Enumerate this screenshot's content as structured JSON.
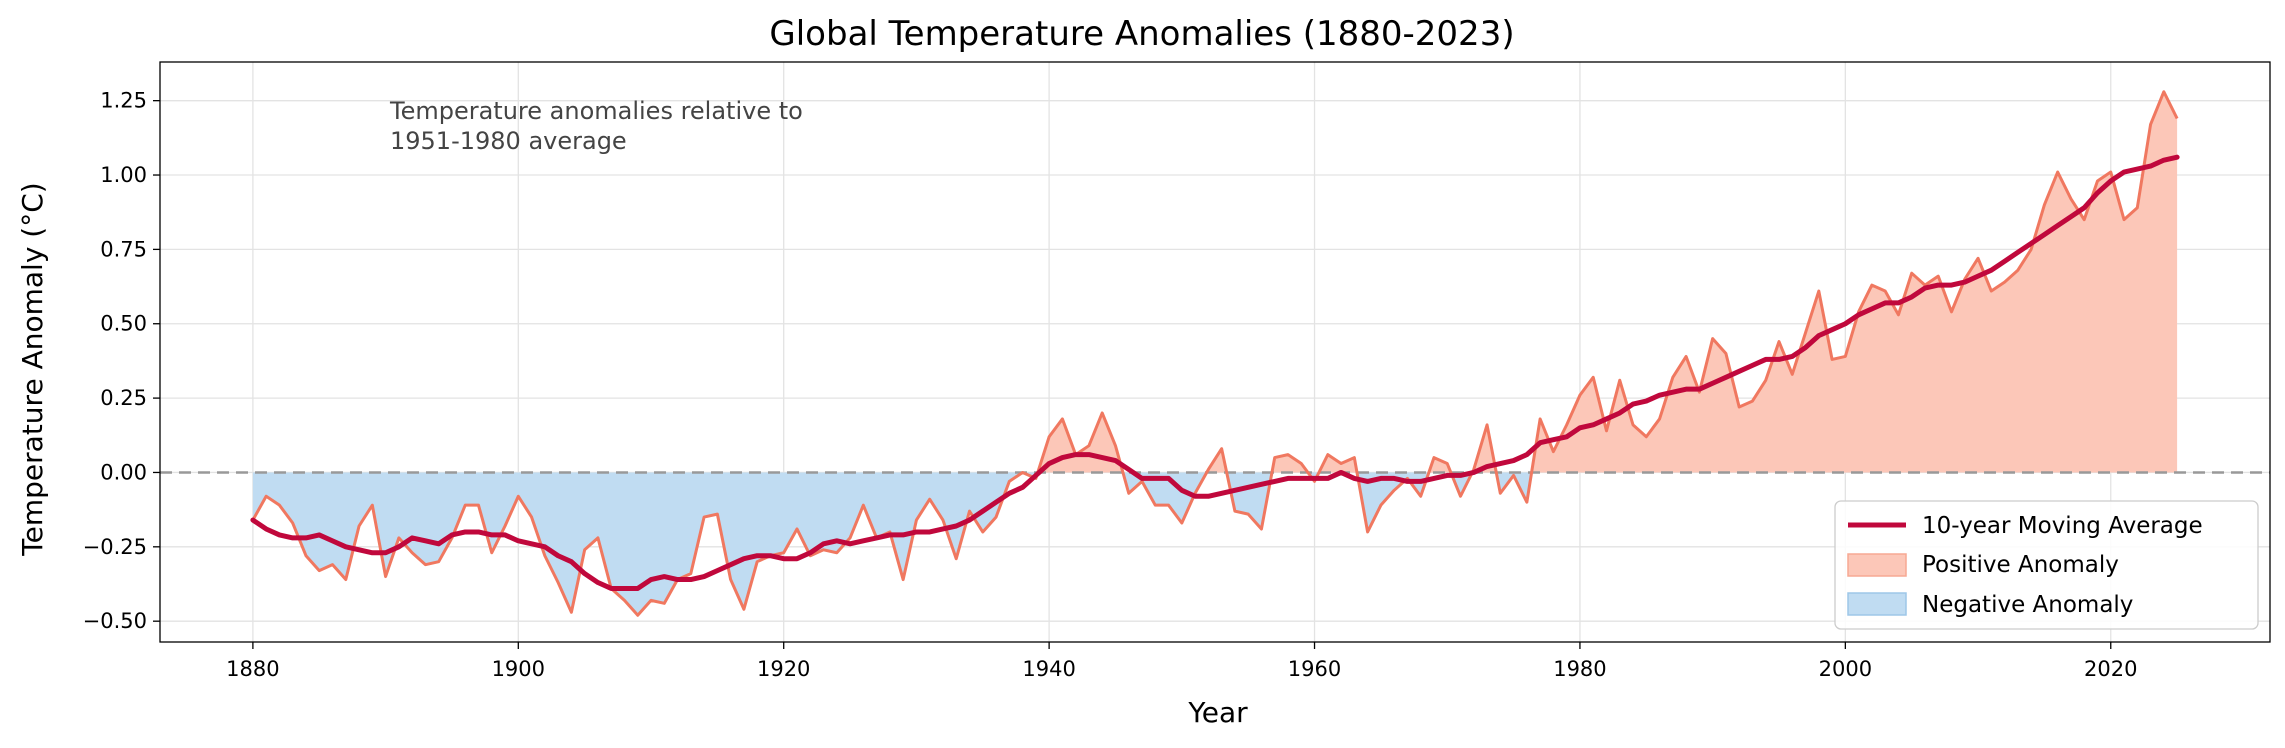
{
  "chart_data": {
    "type": "line",
    "title": "Global Temperature Anomalies (1880-2023)",
    "xlabel": "Year",
    "ylabel": "Temperature Anomaly (°C)",
    "annotation": "Temperature anomalies relative to\n1951-1980 average",
    "xlim": [
      1873,
      2032
    ],
    "ylim": [
      -0.57,
      1.38
    ],
    "xticks": [
      1880,
      1900,
      1920,
      1940,
      1960,
      1980,
      2000,
      2020
    ],
    "yticks": [
      -0.5,
      -0.25,
      0.0,
      0.25,
      0.5,
      0.75,
      1.0,
      1.25
    ],
    "ytick_labels": [
      "−0.50",
      "−0.25",
      "0.00",
      "0.25",
      "0.50",
      "0.75",
      "1.00",
      "1.25"
    ],
    "grid": true,
    "legend_position": "lower-right",
    "legend": [
      "10-year Moving Average",
      "Positive Anomaly",
      "Negative Anomaly"
    ],
    "colors": {
      "annual_line": "#f07860",
      "moving_average": "#c0083c",
      "positive_fill": "#fcc7b8",
      "negative_fill": "#c0dcf2",
      "baseline": "#999999",
      "grid": "#e3e3e3"
    },
    "x_start": 1880,
    "annual_anomaly": [
      -0.16,
      -0.08,
      -0.11,
      -0.17,
      -0.28,
      -0.33,
      -0.31,
      -0.36,
      -0.18,
      -0.11,
      -0.35,
      -0.22,
      -0.27,
      -0.31,
      -0.3,
      -0.22,
      -0.11,
      -0.11,
      -0.27,
      -0.18,
      -0.08,
      -0.15,
      -0.28,
      -0.37,
      -0.47,
      -0.26,
      -0.22,
      -0.39,
      -0.43,
      -0.48,
      -0.43,
      -0.44,
      -0.36,
      -0.34,
      -0.15,
      -0.14,
      -0.36,
      -0.46,
      -0.3,
      -0.28,
      -0.27,
      -0.19,
      -0.28,
      -0.26,
      -0.27,
      -0.22,
      -0.11,
      -0.22,
      -0.2,
      -0.36,
      -0.16,
      -0.09,
      -0.16,
      -0.29,
      -0.13,
      -0.2,
      -0.15,
      -0.03,
      0.0,
      -0.02,
      0.12,
      0.18,
      0.06,
      0.09,
      0.2,
      0.09,
      -0.07,
      -0.03,
      -0.11,
      -0.11,
      -0.17,
      -0.07,
      0.01,
      0.08,
      -0.13,
      -0.14,
      -0.19,
      0.05,
      0.06,
      0.03,
      -0.03,
      0.06,
      0.03,
      0.05,
      -0.2,
      -0.11,
      -0.06,
      -0.02,
      -0.08,
      0.05,
      0.03,
      -0.08,
      0.01,
      0.16,
      -0.07,
      -0.01,
      -0.1,
      0.18,
      0.07,
      0.16,
      0.26,
      0.32,
      0.14,
      0.31,
      0.16,
      0.12,
      0.18,
      0.32,
      0.39,
      0.27,
      0.45,
      0.4,
      0.22,
      0.24,
      0.31,
      0.44,
      0.33,
      0.47,
      0.61,
      0.38,
      0.39,
      0.54,
      0.63,
      0.61,
      0.53,
      0.67,
      0.63,
      0.66,
      0.54,
      0.65,
      0.72,
      0.61,
      0.64,
      0.68,
      0.75,
      0.9,
      1.01,
      0.92,
      0.85,
      0.98,
      1.01,
      0.85,
      0.89,
      1.17,
      1.28,
      1.19
    ],
    "moving_average": [
      -0.16,
      -0.19,
      -0.21,
      -0.22,
      -0.22,
      -0.21,
      -0.23,
      -0.25,
      -0.26,
      -0.27,
      -0.27,
      -0.25,
      -0.22,
      -0.23,
      -0.24,
      -0.21,
      -0.2,
      -0.2,
      -0.21,
      -0.21,
      -0.23,
      -0.24,
      -0.25,
      -0.28,
      -0.3,
      -0.34,
      -0.37,
      -0.39,
      -0.39,
      -0.39,
      -0.36,
      -0.35,
      -0.36,
      -0.36,
      -0.35,
      -0.33,
      -0.31,
      -0.29,
      -0.28,
      -0.28,
      -0.29,
      -0.29,
      -0.27,
      -0.24,
      -0.23,
      -0.24,
      -0.23,
      -0.22,
      -0.21,
      -0.21,
      -0.2,
      -0.2,
      -0.19,
      -0.18,
      -0.16,
      -0.13,
      -0.1,
      -0.07,
      -0.05,
      -0.01,
      0.03,
      0.05,
      0.06,
      0.06,
      0.05,
      0.04,
      0.01,
      -0.02,
      -0.02,
      -0.02,
      -0.06,
      -0.08,
      -0.08,
      -0.07,
      -0.06,
      -0.05,
      -0.04,
      -0.03,
      -0.02,
      -0.02,
      -0.02,
      -0.02,
      0.0,
      -0.02,
      -0.03,
      -0.02,
      -0.02,
      -0.03,
      -0.03,
      -0.02,
      -0.01,
      -0.01,
      0.0,
      0.02,
      0.03,
      0.04,
      0.06,
      0.1,
      0.11,
      0.12,
      0.15,
      0.16,
      0.18,
      0.2,
      0.23,
      0.24,
      0.26,
      0.27,
      0.28,
      0.28,
      0.3,
      0.32,
      0.34,
      0.36,
      0.38,
      0.38,
      0.39,
      0.42,
      0.46,
      0.48,
      0.5,
      0.53,
      0.55,
      0.57,
      0.57,
      0.59,
      0.62,
      0.63,
      0.63,
      0.64,
      0.66,
      0.68,
      0.71,
      0.74,
      0.77,
      0.8,
      0.83,
      0.86,
      0.89,
      0.94,
      0.98,
      1.01,
      1.02,
      1.03,
      1.05,
      1.06
    ]
  }
}
